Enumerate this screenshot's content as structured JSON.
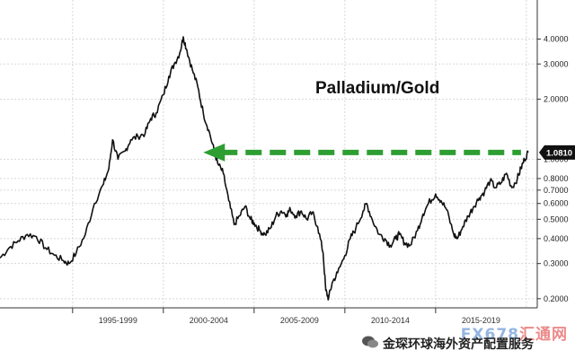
{
  "chart_data": {
    "type": "line",
    "title": "Palladium/Gold",
    "y_scale": "log",
    "ylim": [
      0.18,
      4.6
    ],
    "xlim": [
      1991.0,
      2020.6
    ],
    "y_ticks": [
      "4.0000",
      "3.0000",
      "2.0000",
      "1.0000",
      "0.8000",
      "0.7000",
      "0.6000",
      "0.5000",
      "0.4000",
      "0.3000",
      "0.2000"
    ],
    "x_tick_labels": [
      "1995-1999",
      "2000-2004",
      "2005-2009",
      "2010-2014",
      "2015-2019"
    ],
    "current_value_label": "1.0810",
    "annotation": "dashed green arrow from the latest value back to the 2001 level",
    "grid": true,
    "line_color": "#111111",
    "arrow_color": "#2e9e33",
    "series": [
      {
        "values": [
          [
            1991.0,
            0.32
          ],
          [
            1991.5,
            0.36
          ],
          [
            1992.0,
            0.39
          ],
          [
            1992.5,
            0.42
          ],
          [
            1993.0,
            0.41
          ],
          [
            1993.5,
            0.36
          ],
          [
            1994.0,
            0.33
          ],
          [
            1994.5,
            0.31
          ],
          [
            1994.8,
            0.3
          ],
          [
            1995.2,
            0.34
          ],
          [
            1995.7,
            0.42
          ],
          [
            1996.2,
            0.6
          ],
          [
            1996.7,
            0.75
          ],
          [
            1997.0,
            0.9
          ],
          [
            1997.2,
            1.25
          ],
          [
            1997.5,
            1.0
          ],
          [
            1997.9,
            1.1
          ],
          [
            1998.2,
            1.25
          ],
          [
            1998.6,
            1.3
          ],
          [
            1999.0,
            1.35
          ],
          [
            1999.3,
            1.6
          ],
          [
            1999.6,
            1.7
          ],
          [
            2000.0,
            2.1
          ],
          [
            2000.3,
            2.6
          ],
          [
            2000.6,
            3.0
          ],
          [
            2000.9,
            3.4
          ],
          [
            2001.1,
            4.1
          ],
          [
            2001.3,
            3.5
          ],
          [
            2001.6,
            2.8
          ],
          [
            2001.9,
            2.3
          ],
          [
            2002.2,
            1.7
          ],
          [
            2002.5,
            1.4
          ],
          [
            2002.8,
            1.1
          ],
          [
            2003.0,
            0.95
          ],
          [
            2003.3,
            0.85
          ],
          [
            2003.6,
            0.62
          ],
          [
            2003.9,
            0.47
          ],
          [
            2004.2,
            0.52
          ],
          [
            2004.5,
            0.58
          ],
          [
            2004.8,
            0.5
          ],
          [
            2005.0,
            0.48
          ],
          [
            2005.3,
            0.44
          ],
          [
            2005.6,
            0.42
          ],
          [
            2005.9,
            0.45
          ],
          [
            2006.2,
            0.52
          ],
          [
            2006.5,
            0.55
          ],
          [
            2006.8,
            0.53
          ],
          [
            2007.0,
            0.56
          ],
          [
            2007.3,
            0.52
          ],
          [
            2007.6,
            0.55
          ],
          [
            2007.9,
            0.5
          ],
          [
            2008.2,
            0.54
          ],
          [
            2008.5,
            0.46
          ],
          [
            2008.8,
            0.34
          ],
          [
            2008.95,
            0.22
          ],
          [
            2009.1,
            0.2
          ],
          [
            2009.3,
            0.24
          ],
          [
            2009.6,
            0.27
          ],
          [
            2010.0,
            0.33
          ],
          [
            2010.3,
            0.4
          ],
          [
            2010.6,
            0.45
          ],
          [
            2011.0,
            0.55
          ],
          [
            2011.2,
            0.6
          ],
          [
            2011.5,
            0.5
          ],
          [
            2011.9,
            0.42
          ],
          [
            2012.2,
            0.4
          ],
          [
            2012.5,
            0.37
          ],
          [
            2012.8,
            0.4
          ],
          [
            2013.0,
            0.42
          ],
          [
            2013.3,
            0.38
          ],
          [
            2013.6,
            0.37
          ],
          [
            2014.0,
            0.44
          ],
          [
            2014.3,
            0.53
          ],
          [
            2014.6,
            0.6
          ],
          [
            2015.0,
            0.67
          ],
          [
            2015.3,
            0.62
          ],
          [
            2015.6,
            0.56
          ],
          [
            2016.0,
            0.42
          ],
          [
            2016.2,
            0.4
          ],
          [
            2016.5,
            0.46
          ],
          [
            2016.8,
            0.52
          ],
          [
            2017.1,
            0.58
          ],
          [
            2017.4,
            0.64
          ],
          [
            2017.7,
            0.69
          ],
          [
            2018.0,
            0.78
          ],
          [
            2018.3,
            0.72
          ],
          [
            2018.6,
            0.76
          ],
          [
            2018.9,
            0.85
          ],
          [
            2019.2,
            0.72
          ],
          [
            2019.5,
            0.8
          ],
          [
            2019.7,
            0.9
          ],
          [
            2019.9,
            1.0
          ],
          [
            2020.1,
            1.081
          ]
        ]
      }
    ]
  },
  "watermark": {
    "brand": "FX678",
    "brand_suffix": "汇通网",
    "caption": "金琛环球海外资产配置服务"
  }
}
